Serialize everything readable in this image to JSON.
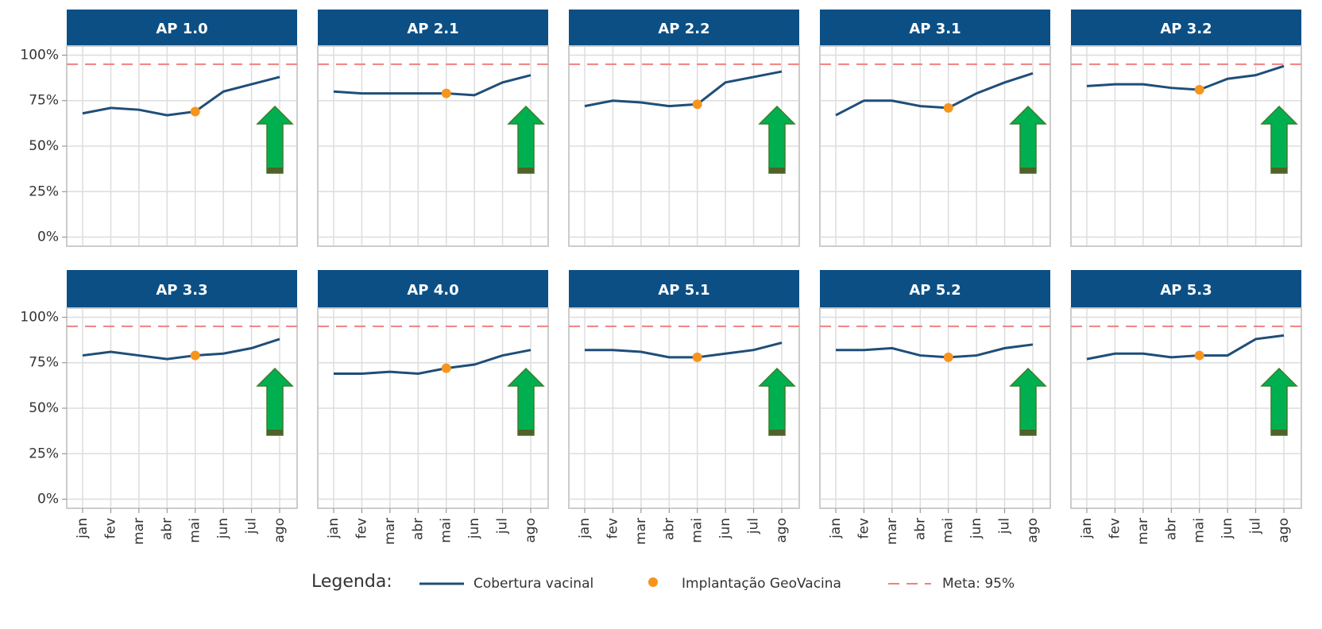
{
  "chart_data": {
    "type": "line",
    "categories": [
      "jan",
      "fev",
      "mar",
      "abr",
      "mai",
      "jun",
      "jul",
      "ago"
    ],
    "ylim": [
      -5,
      105
    ],
    "yticks": [
      {
        "value": 0,
        "label": "0%"
      },
      {
        "value": 25,
        "label": "25%"
      },
      {
        "value": 50,
        "label": "50%"
      },
      {
        "value": 75,
        "label": "75%"
      },
      {
        "value": 100,
        "label": "100%"
      }
    ],
    "grid": true,
    "target": 95,
    "implantation_category": "mai",
    "colors": {
      "line": "#1f4e79",
      "point": "#f7941d",
      "target": "#f08080",
      "header": "#0b4f85"
    },
    "panels": [
      {
        "title": "AP 1.0",
        "values": [
          68,
          71,
          70,
          67,
          69,
          80,
          84,
          88
        ],
        "implantation_value": 69
      },
      {
        "title": "AP 2.1",
        "values": [
          80,
          79,
          79,
          79,
          79,
          78,
          85,
          89
        ],
        "implantation_value": 79
      },
      {
        "title": "AP 2.2",
        "values": [
          72,
          75,
          74,
          72,
          73,
          85,
          88,
          91
        ],
        "implantation_value": 73
      },
      {
        "title": "AP 3.1",
        "values": [
          67,
          75,
          75,
          72,
          71,
          79,
          85,
          90
        ],
        "implantation_value": 71
      },
      {
        "title": "AP 3.2",
        "values": [
          83,
          84,
          84,
          82,
          81,
          87,
          89,
          94
        ],
        "implantation_value": 81
      },
      {
        "title": "AP 3.3",
        "values": [
          79,
          81,
          79,
          77,
          79,
          80,
          83,
          88
        ],
        "implantation_value": 79
      },
      {
        "title": "AP 4.0",
        "values": [
          69,
          69,
          70,
          69,
          72,
          74,
          79,
          82
        ],
        "implantation_value": 72
      },
      {
        "title": "AP 5.1",
        "values": [
          82,
          82,
          81,
          78,
          78,
          80,
          82,
          86
        ],
        "implantation_value": 78
      },
      {
        "title": "AP 5.2",
        "values": [
          82,
          82,
          83,
          79,
          78,
          79,
          83,
          85
        ],
        "implantation_value": 78
      },
      {
        "title": "AP 5.3",
        "values": [
          77,
          80,
          80,
          78,
          79,
          79,
          88,
          90
        ],
        "implantation_value": 79
      }
    ],
    "legend": {
      "title": "Legenda:",
      "line": "Cobertura vacinal",
      "point": "Implantação GeoVacina",
      "target": "Meta: 95%"
    }
  }
}
